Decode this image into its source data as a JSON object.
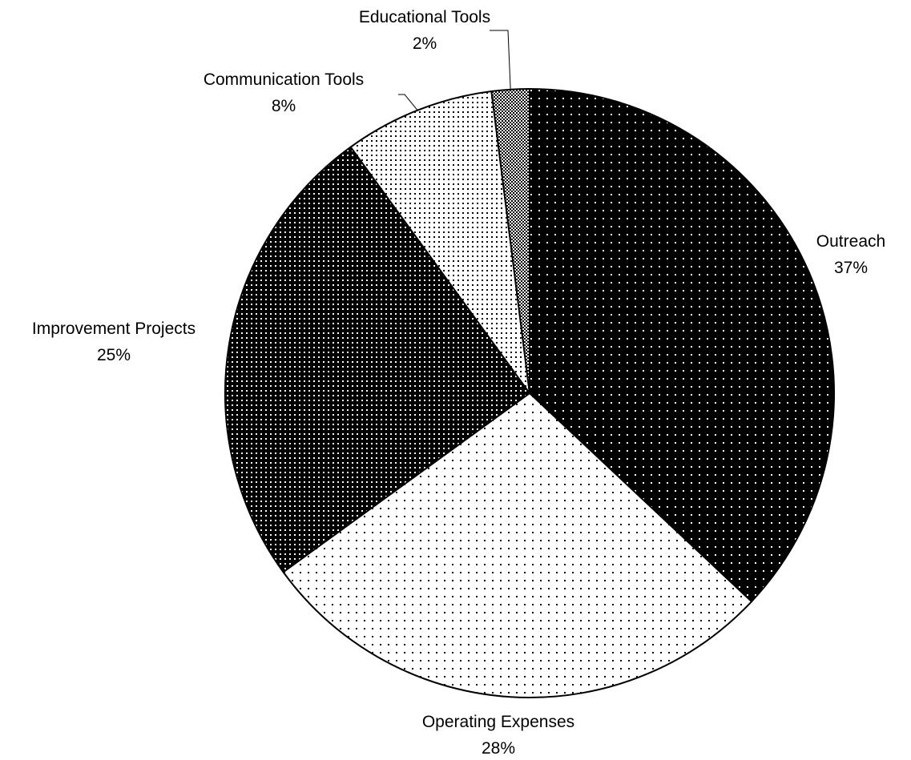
{
  "chart_data": {
    "type": "pie",
    "start_angle_deg": 0,
    "direction": "clockwise",
    "slices": [
      {
        "label": "Outreach",
        "value": 37,
        "value_label": "37%",
        "pattern": "dots-on-black"
      },
      {
        "label": "Operating Expenses",
        "value": 28,
        "value_label": "28%",
        "pattern": "sparse-dots-on-white"
      },
      {
        "label": "Improvement Projects",
        "value": 25,
        "value_label": "25%",
        "pattern": "dense-dots-on-black"
      },
      {
        "label": "Communication Tools",
        "value": 8,
        "value_label": "8%",
        "pattern": "dense-dots-on-white"
      },
      {
        "label": "Educational Tools",
        "value": 2,
        "value_label": "2%",
        "pattern": "checker"
      }
    ],
    "colors": {
      "outline": "#000000",
      "ink": "#000000",
      "paper": "#ffffff"
    }
  }
}
